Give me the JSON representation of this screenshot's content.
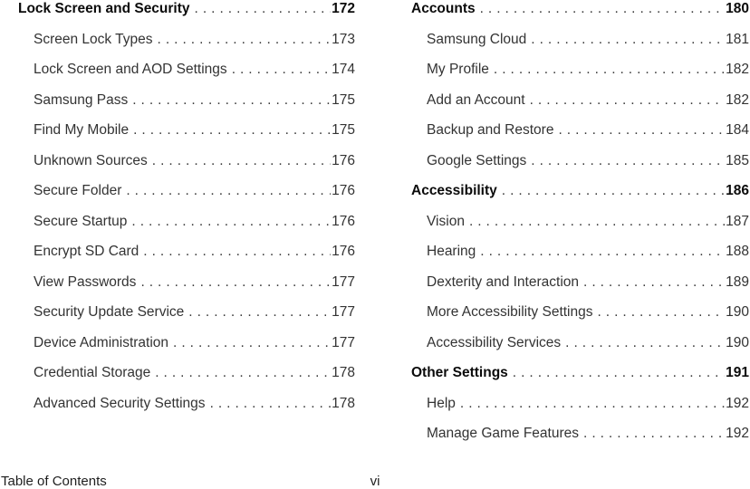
{
  "page": {
    "background_color": "#ffffff",
    "body_text_color": "#333333",
    "heading_text_color": "#0b0b0b"
  },
  "footer": {
    "section_label": "Table of Contents",
    "page_number": "vi"
  },
  "columns": {
    "left": {
      "rows": [
        {
          "label": "Lock Screen and Security",
          "page": "172",
          "level": "heading"
        },
        {
          "label": "Screen Lock Types",
          "page": "173",
          "level": "sub"
        },
        {
          "label": "Lock Screen and AOD Settings",
          "page": "174",
          "level": "sub"
        },
        {
          "label": "Samsung Pass",
          "page": "175",
          "level": "sub"
        },
        {
          "label": "Find My Mobile",
          "page": "175",
          "level": "sub"
        },
        {
          "label": "Unknown Sources",
          "page": "176",
          "level": "sub"
        },
        {
          "label": "Secure Folder",
          "page": "176",
          "level": "sub"
        },
        {
          "label": "Secure Startup",
          "page": "176",
          "level": "sub"
        },
        {
          "label": "Encrypt SD Card",
          "page": "176",
          "level": "sub"
        },
        {
          "label": "View Passwords",
          "page": "177",
          "level": "sub"
        },
        {
          "label": "Security Update Service",
          "page": "177",
          "level": "sub"
        },
        {
          "label": "Device Administration",
          "page": "177",
          "level": "sub"
        },
        {
          "label": "Credential Storage",
          "page": "178",
          "level": "sub"
        },
        {
          "label": "Advanced Security Settings",
          "page": "178",
          "level": "sub"
        }
      ]
    },
    "right": {
      "rows": [
        {
          "label": "Accounts",
          "page": "180",
          "level": "heading"
        },
        {
          "label": "Samsung Cloud",
          "page": "181",
          "level": "sub"
        },
        {
          "label": "My Profile",
          "page": "182",
          "level": "sub"
        },
        {
          "label": "Add an Account",
          "page": "182",
          "level": "sub"
        },
        {
          "label": "Backup and Restore",
          "page": "184",
          "level": "sub"
        },
        {
          "label": "Google Settings",
          "page": "185",
          "level": "sub"
        },
        {
          "label": "Accessibility",
          "page": "186",
          "level": "heading"
        },
        {
          "label": "Vision",
          "page": "187",
          "level": "sub"
        },
        {
          "label": "Hearing",
          "page": "188",
          "level": "sub"
        },
        {
          "label": "Dexterity and Interaction",
          "page": "189",
          "level": "sub"
        },
        {
          "label": "More Accessibility Settings",
          "page": "190",
          "level": "sub"
        },
        {
          "label": "Accessibility Services",
          "page": "190",
          "level": "sub"
        },
        {
          "label": "Other Settings",
          "page": "191",
          "level": "heading"
        },
        {
          "label": "Help",
          "page": "192",
          "level": "sub"
        },
        {
          "label": "Manage Game Features",
          "page": "192",
          "level": "sub"
        }
      ]
    }
  }
}
